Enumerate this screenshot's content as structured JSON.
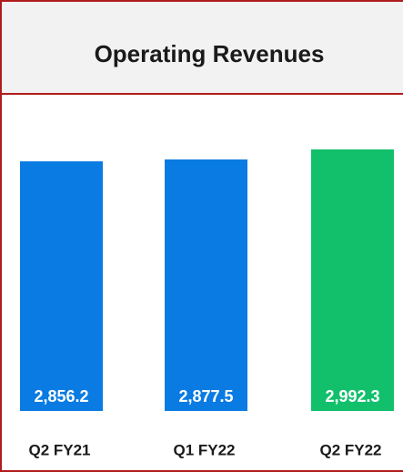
{
  "chart_data": {
    "type": "bar",
    "title": "Operating Revenues",
    "categories": [
      "Q2 FY21",
      "Q1 FY22",
      "Q2 FY22"
    ],
    "values": [
      2856.2,
      2877.5,
      2992.3
    ],
    "value_labels": [
      "2,856.2",
      "2,877.5",
      "2,992.3"
    ],
    "colors": [
      "#0a7be2",
      "#0a7be2",
      "#12c06c"
    ]
  }
}
